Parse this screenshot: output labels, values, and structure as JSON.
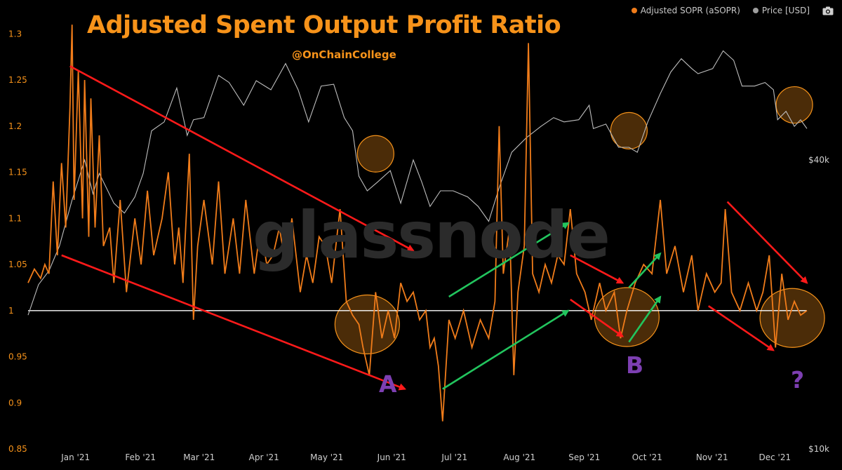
{
  "title": "Adjusted Spent Output Profit Ratio",
  "subtitle": "@OnChainCollege",
  "watermark": "glassnode",
  "legend": {
    "asopr_label": "Adjusted SOPR (aSOPR)",
    "price_label": "Price [USD]"
  },
  "annotations": {
    "a": "A",
    "b": "B",
    "q": "?"
  },
  "colors": {
    "asopr": "#f07c1a",
    "price": "#bdbdbd",
    "baseline": "#ffffff",
    "trend_down": "#ff1a1a",
    "trend_up": "#22c55e",
    "highlight": "#f7931a",
    "annotation": "#7d3fb2",
    "title": "#f7931a"
  },
  "chart_data": {
    "type": "line",
    "title": "Adjusted Spent Output Profit Ratio",
    "x_range": [
      "2020-12-12",
      "2021-12-19"
    ],
    "x_ticks": [
      {
        "label": "Jan '21",
        "date": "2021-01-01"
      },
      {
        "label": "Feb '21",
        "date": "2021-02-01"
      },
      {
        "label": "Mar '21",
        "date": "2021-03-01"
      },
      {
        "label": "Apr '21",
        "date": "2021-04-01"
      },
      {
        "label": "May '21",
        "date": "2021-05-01"
      },
      {
        "label": "Jun '21",
        "date": "2021-06-01"
      },
      {
        "label": "Jul '21",
        "date": "2021-07-01"
      },
      {
        "label": "Aug '21",
        "date": "2021-08-01"
      },
      {
        "label": "Sep '21",
        "date": "2021-09-01"
      },
      {
        "label": "Oct '21",
        "date": "2021-10-01"
      },
      {
        "label": "Nov '21",
        "date": "2021-11-01"
      },
      {
        "label": "Dec '21",
        "date": "2021-12-01"
      }
    ],
    "y_left": {
      "label": "aSOPR",
      "range": [
        0.85,
        1.32
      ],
      "ticks": [
        "0.85",
        "0.9",
        "0.95",
        "1",
        "1.05",
        "1.1",
        "1.15",
        "1.2",
        "1.25",
        "1.3"
      ]
    },
    "y_right": {
      "label": "Price [USD]",
      "scale": "log",
      "range": [
        10000,
        80000
      ],
      "ticks": [
        {
          "label": "$10k",
          "value": 10000
        },
        {
          "label": "$40k",
          "value": 40000
        }
      ]
    },
    "baseline": 1.0,
    "series": [
      {
        "name": "Adjusted SOPR (aSOPR)",
        "axis": "left",
        "points": [
          [
            "2020-12-12",
            1.03
          ],
          [
            "2020-12-15",
            1.045
          ],
          [
            "2020-12-18",
            1.035
          ],
          [
            "2020-12-20",
            1.05
          ],
          [
            "2020-12-22",
            1.04
          ],
          [
            "2020-12-24",
            1.14
          ],
          [
            "2020-12-26",
            1.06
          ],
          [
            "2020-12-28",
            1.16
          ],
          [
            "2020-12-30",
            1.09
          ],
          [
            "2021-01-01",
            1.22
          ],
          [
            "2021-01-02",
            1.31
          ],
          [
            "2021-01-03",
            1.12
          ],
          [
            "2021-01-05",
            1.26
          ],
          [
            "2021-01-07",
            1.1
          ],
          [
            "2021-01-08",
            1.25
          ],
          [
            "2021-01-10",
            1.08
          ],
          [
            "2021-01-11",
            1.23
          ],
          [
            "2021-01-13",
            1.09
          ],
          [
            "2021-01-15",
            1.19
          ],
          [
            "2021-01-17",
            1.07
          ],
          [
            "2021-01-20",
            1.09
          ],
          [
            "2021-01-22",
            1.03
          ],
          [
            "2021-01-25",
            1.12
          ],
          [
            "2021-01-28",
            1.02
          ],
          [
            "2021-02-01",
            1.1
          ],
          [
            "2021-02-04",
            1.05
          ],
          [
            "2021-02-07",
            1.13
          ],
          [
            "2021-02-10",
            1.06
          ],
          [
            "2021-02-14",
            1.1
          ],
          [
            "2021-02-17",
            1.15
          ],
          [
            "2021-02-20",
            1.05
          ],
          [
            "2021-02-22",
            1.09
          ],
          [
            "2021-02-24",
            1.03
          ],
          [
            "2021-02-27",
            1.17
          ],
          [
            "2021-03-01",
            0.99
          ],
          [
            "2021-03-03",
            1.07
          ],
          [
            "2021-03-06",
            1.12
          ],
          [
            "2021-03-10",
            1.05
          ],
          [
            "2021-03-13",
            1.14
          ],
          [
            "2021-03-16",
            1.04
          ],
          [
            "2021-03-20",
            1.1
          ],
          [
            "2021-03-23",
            1.04
          ],
          [
            "2021-03-26",
            1.12
          ],
          [
            "2021-03-30",
            1.04
          ],
          [
            "2021-04-02",
            1.09
          ],
          [
            "2021-04-05",
            1.05
          ],
          [
            "2021-04-08",
            1.06
          ],
          [
            "2021-04-11",
            1.09
          ],
          [
            "2021-04-14",
            1.05
          ],
          [
            "2021-04-17",
            1.1
          ],
          [
            "2021-04-21",
            1.02
          ],
          [
            "2021-04-24",
            1.06
          ],
          [
            "2021-04-27",
            1.03
          ],
          [
            "2021-04-30",
            1.08
          ],
          [
            "2021-05-03",
            1.07
          ],
          [
            "2021-05-06",
            1.03
          ],
          [
            "2021-05-10",
            1.11
          ],
          [
            "2021-05-13",
            1.01
          ],
          [
            "2021-05-16",
            0.995
          ],
          [
            "2021-05-19",
            0.985
          ],
          [
            "2021-05-21",
            0.96
          ],
          [
            "2021-05-24",
            0.93
          ],
          [
            "2021-05-27",
            1.02
          ],
          [
            "2021-05-30",
            0.97
          ],
          [
            "2021-06-02",
            1.0
          ],
          [
            "2021-06-05",
            0.97
          ],
          [
            "2021-06-08",
            1.03
          ],
          [
            "2021-06-11",
            1.01
          ],
          [
            "2021-06-14",
            1.02
          ],
          [
            "2021-06-17",
            0.99
          ],
          [
            "2021-06-20",
            1.0
          ],
          [
            "2021-06-22",
            0.96
          ],
          [
            "2021-06-24",
            0.97
          ],
          [
            "2021-06-26",
            0.94
          ],
          [
            "2021-06-28",
            0.88
          ],
          [
            "2021-07-01",
            0.99
          ],
          [
            "2021-07-04",
            0.97
          ],
          [
            "2021-07-08",
            1.0
          ],
          [
            "2021-07-12",
            0.96
          ],
          [
            "2021-07-16",
            0.99
          ],
          [
            "2021-07-20",
            0.97
          ],
          [
            "2021-07-23",
            1.01
          ],
          [
            "2021-07-25",
            1.2
          ],
          [
            "2021-07-27",
            1.04
          ],
          [
            "2021-07-30",
            1.09
          ],
          [
            "2021-08-01",
            0.93
          ],
          [
            "2021-08-03",
            1.02
          ],
          [
            "2021-08-06",
            1.07
          ],
          [
            "2021-08-08",
            1.29
          ],
          [
            "2021-08-10",
            1.04
          ],
          [
            "2021-08-13",
            1.02
          ],
          [
            "2021-08-16",
            1.05
          ],
          [
            "2021-08-19",
            1.03
          ],
          [
            "2021-08-22",
            1.06
          ],
          [
            "2021-08-25",
            1.05
          ],
          [
            "2021-08-28",
            1.11
          ],
          [
            "2021-08-31",
            1.04
          ],
          [
            "2021-09-04",
            1.02
          ],
          [
            "2021-09-07",
            0.99
          ],
          [
            "2021-09-11",
            1.03
          ],
          [
            "2021-09-14",
            1.0
          ],
          [
            "2021-09-18",
            1.02
          ],
          [
            "2021-09-21",
            0.97
          ],
          [
            "2021-09-24",
            1.0
          ],
          [
            "2021-09-28",
            1.03
          ],
          [
            "2021-10-02",
            1.05
          ],
          [
            "2021-10-06",
            1.04
          ],
          [
            "2021-10-10",
            1.12
          ],
          [
            "2021-10-13",
            1.04
          ],
          [
            "2021-10-17",
            1.07
          ],
          [
            "2021-10-21",
            1.02
          ],
          [
            "2021-10-25",
            1.06
          ],
          [
            "2021-10-28",
            1.0
          ],
          [
            "2021-11-01",
            1.04
          ],
          [
            "2021-11-05",
            1.02
          ],
          [
            "2021-11-08",
            1.03
          ],
          [
            "2021-11-10",
            1.11
          ],
          [
            "2021-11-13",
            1.02
          ],
          [
            "2021-11-17",
            1.0
          ],
          [
            "2021-11-21",
            1.03
          ],
          [
            "2021-11-25",
            1.0
          ],
          [
            "2021-11-28",
            1.02
          ],
          [
            "2021-12-01",
            1.06
          ],
          [
            "2021-12-04",
            0.96
          ],
          [
            "2021-12-07",
            1.04
          ],
          [
            "2021-12-10",
            0.99
          ],
          [
            "2021-12-13",
            1.01
          ],
          [
            "2021-12-16",
            0.995
          ],
          [
            "2021-12-19",
            1.0
          ]
        ]
      },
      {
        "name": "Price [USD]",
        "axis": "right",
        "points": [
          [
            "2020-12-12",
            19000
          ],
          [
            "2020-12-17",
            22000
          ],
          [
            "2020-12-22",
            23500
          ],
          [
            "2020-12-27",
            26500
          ],
          [
            "2021-01-02",
            33000
          ],
          [
            "2021-01-08",
            40000
          ],
          [
            "2021-01-12",
            34000
          ],
          [
            "2021-01-15",
            37500
          ],
          [
            "2021-01-22",
            32500
          ],
          [
            "2021-01-27",
            31000
          ],
          [
            "2021-02-01",
            33500
          ],
          [
            "2021-02-05",
            37500
          ],
          [
            "2021-02-09",
            46000
          ],
          [
            "2021-02-15",
            48000
          ],
          [
            "2021-02-21",
            56500
          ],
          [
            "2021-02-26",
            45000
          ],
          [
            "2021-03-01",
            48500
          ],
          [
            "2021-03-06",
            49000
          ],
          [
            "2021-03-13",
            60000
          ],
          [
            "2021-03-18",
            58000
          ],
          [
            "2021-03-25",
            52000
          ],
          [
            "2021-03-31",
            58500
          ],
          [
            "2021-04-07",
            56000
          ],
          [
            "2021-04-14",
            63500
          ],
          [
            "2021-04-20",
            56000
          ],
          [
            "2021-04-25",
            48000
          ],
          [
            "2021-05-01",
            57000
          ],
          [
            "2021-05-07",
            57500
          ],
          [
            "2021-05-12",
            49000
          ],
          [
            "2021-05-16",
            46000
          ],
          [
            "2021-05-19",
            37000
          ],
          [
            "2021-05-23",
            34500
          ],
          [
            "2021-05-28",
            36000
          ],
          [
            "2021-06-03",
            38000
          ],
          [
            "2021-06-08",
            32500
          ],
          [
            "2021-06-14",
            40000
          ],
          [
            "2021-06-18",
            36000
          ],
          [
            "2021-06-22",
            32000
          ],
          [
            "2021-06-27",
            34500
          ],
          [
            "2021-07-03",
            34500
          ],
          [
            "2021-07-10",
            33500
          ],
          [
            "2021-07-15",
            32000
          ],
          [
            "2021-07-20",
            29800
          ],
          [
            "2021-07-25",
            35000
          ],
          [
            "2021-07-31",
            41500
          ],
          [
            "2021-08-07",
            44500
          ],
          [
            "2021-08-14",
            47000
          ],
          [
            "2021-08-20",
            49000
          ],
          [
            "2021-08-25",
            48000
          ],
          [
            "2021-09-01",
            48500
          ],
          [
            "2021-09-06",
            52000
          ],
          [
            "2021-09-08",
            46500
          ],
          [
            "2021-09-14",
            47500
          ],
          [
            "2021-09-20",
            42500
          ],
          [
            "2021-09-25",
            42500
          ],
          [
            "2021-09-29",
            41500
          ],
          [
            "2021-10-04",
            48000
          ],
          [
            "2021-10-10",
            55000
          ],
          [
            "2021-10-15",
            61000
          ],
          [
            "2021-10-20",
            65000
          ],
          [
            "2021-10-25",
            62000
          ],
          [
            "2021-10-28",
            60500
          ],
          [
            "2021-11-04",
            62000
          ],
          [
            "2021-11-09",
            67500
          ],
          [
            "2021-11-14",
            64500
          ],
          [
            "2021-11-18",
            57000
          ],
          [
            "2021-11-24",
            57000
          ],
          [
            "2021-11-29",
            58000
          ],
          [
            "2021-12-03",
            56000
          ],
          [
            "2021-12-05",
            48500
          ],
          [
            "2021-12-09",
            50500
          ],
          [
            "2021-12-13",
            47000
          ],
          [
            "2021-12-16",
            48500
          ],
          [
            "2021-12-19",
            46500
          ]
        ]
      }
    ],
    "trend_lines": [
      {
        "color": "down",
        "from": [
          "2021-01-01",
          1.265
        ],
        "to": [
          "2021-06-14",
          1.065
        ]
      },
      {
        "color": "down",
        "from": [
          "2020-12-28",
          1.06
        ],
        "to": [
          "2021-06-10",
          0.915
        ]
      },
      {
        "color": "up",
        "from": [
          "2021-07-01",
          1.015
        ],
        "to": [
          "2021-08-27",
          1.095
        ]
      },
      {
        "color": "up",
        "from": [
          "2021-06-28",
          0.915
        ],
        "to": [
          "2021-08-27",
          1.0
        ]
      },
      {
        "color": "down",
        "from": [
          "2021-08-28",
          1.06
        ],
        "to": [
          "2021-09-22",
          1.03
        ]
      },
      {
        "color": "down",
        "from": [
          "2021-08-28",
          1.012
        ],
        "to": [
          "2021-09-22",
          0.972
        ]
      },
      {
        "color": "up",
        "from": [
          "2021-09-25",
          1.025
        ],
        "to": [
          "2021-10-10",
          1.062
        ]
      },
      {
        "color": "up",
        "from": [
          "2021-09-25",
          0.966
        ],
        "to": [
          "2021-10-10",
          1.015
        ]
      },
      {
        "color": "down",
        "from": [
          "2021-11-11",
          1.118
        ],
        "to": [
          "2021-12-19",
          1.03
        ]
      },
      {
        "color": "down",
        "from": [
          "2021-11-02",
          1.005
        ],
        "to": [
          "2021-12-03",
          0.957
        ]
      }
    ],
    "highlight_circles": [
      {
        "date": "2021-05-23",
        "y": 0.985,
        "label": "A"
      },
      {
        "date": "2021-05-27",
        "y": 1.17
      },
      {
        "date": "2021-09-24",
        "y": 0.993,
        "label": "B"
      },
      {
        "date": "2021-09-25",
        "y": 1.195
      },
      {
        "date": "2021-12-12",
        "y": 0.992,
        "label": "?"
      },
      {
        "date": "2021-12-13",
        "y": 1.223
      }
    ]
  }
}
